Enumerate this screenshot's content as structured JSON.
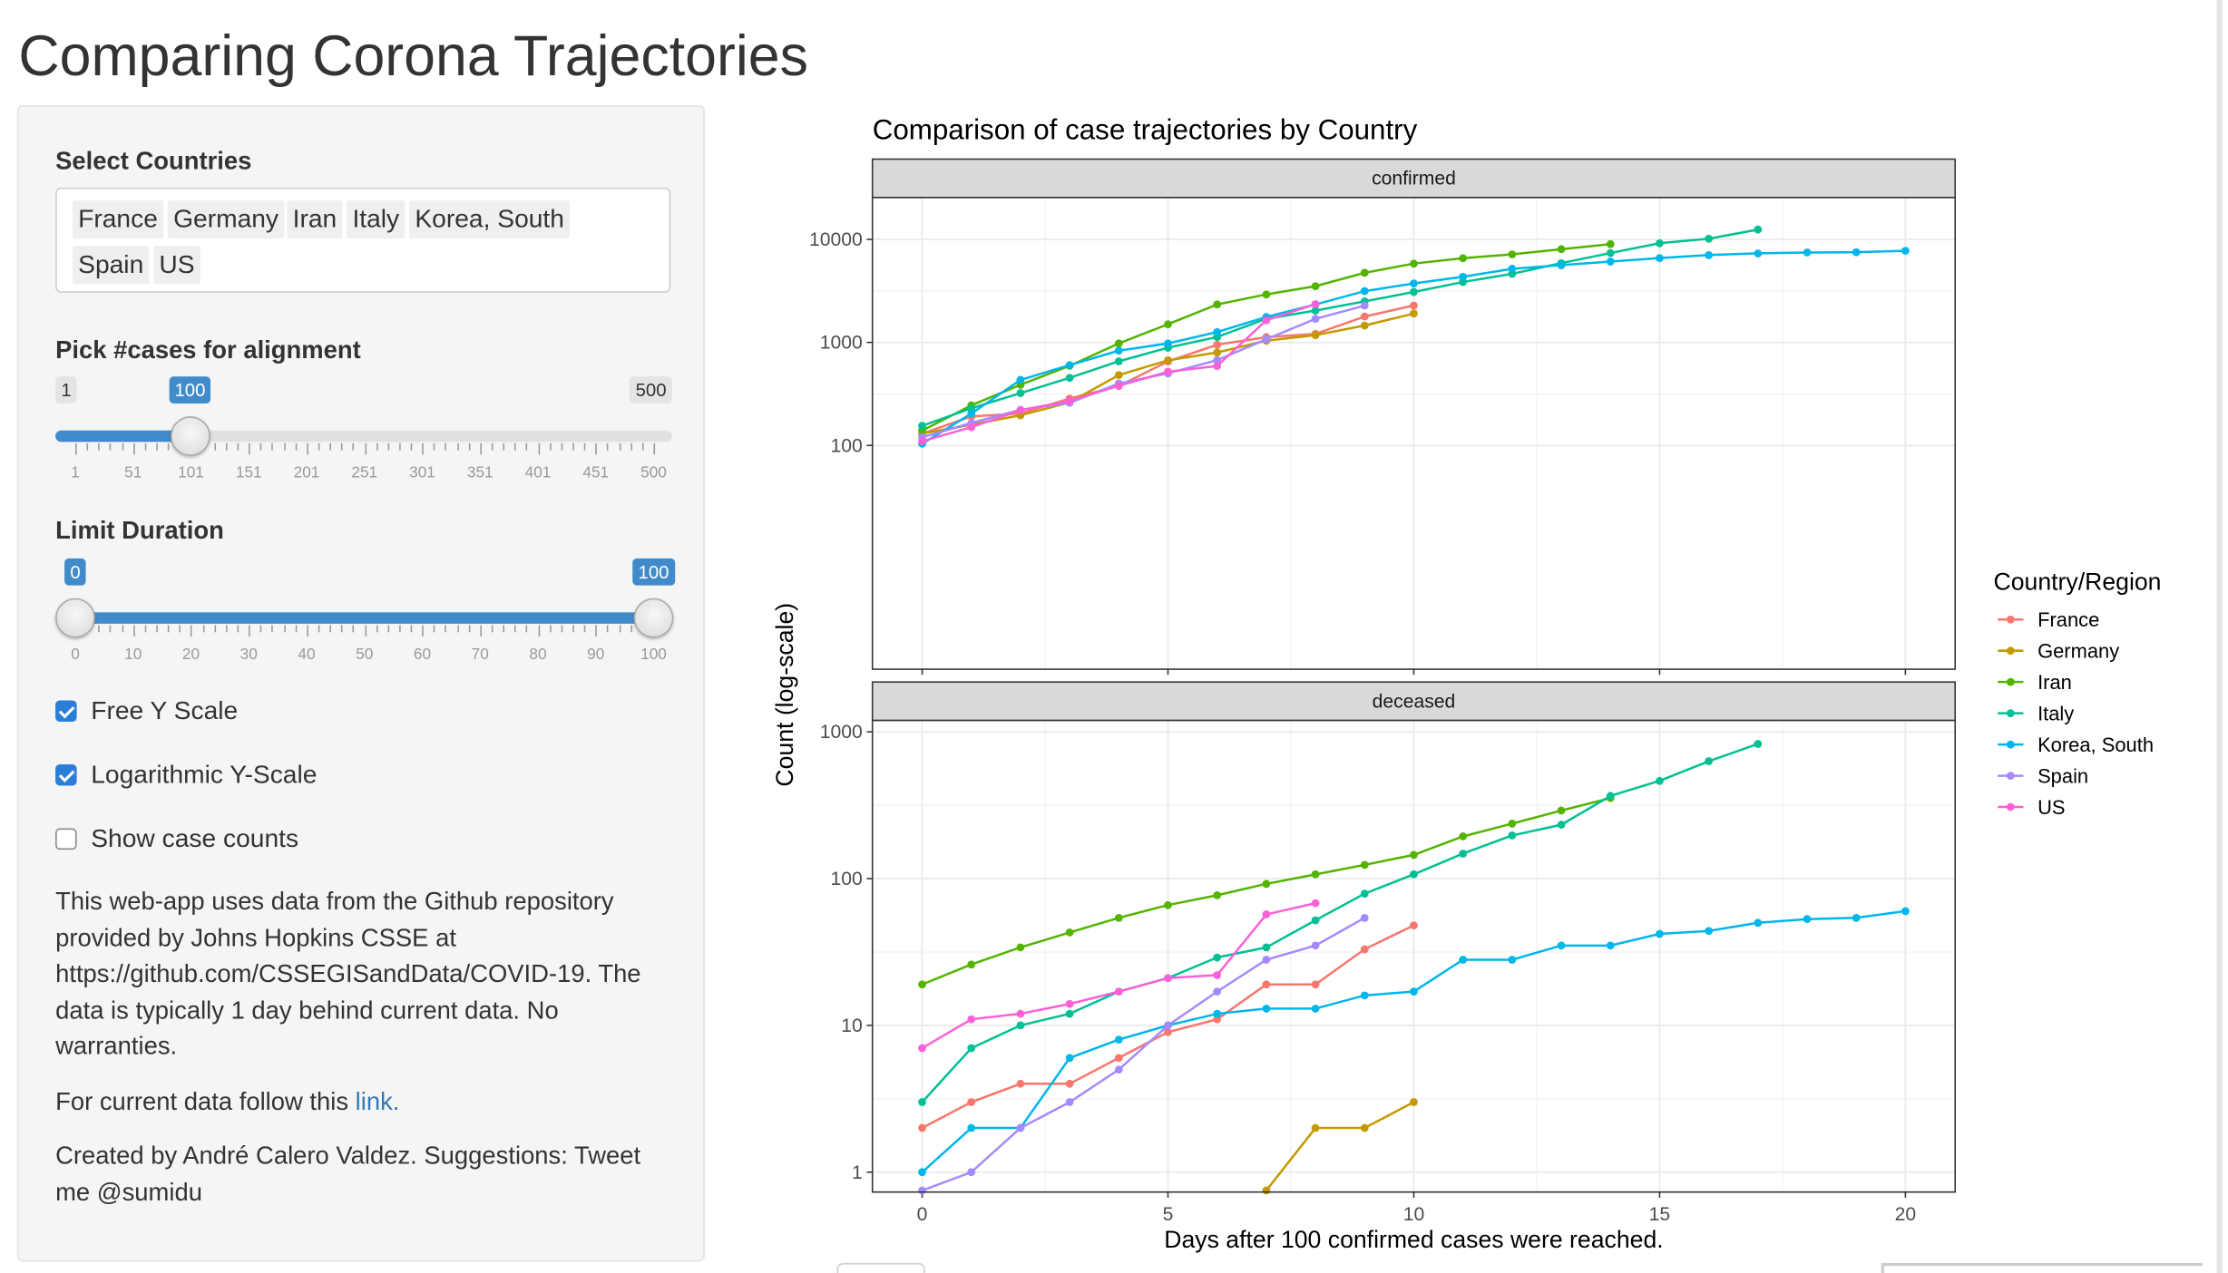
{
  "app": {
    "title": "Comparing Corona Trajectories"
  },
  "sidebar": {
    "countries": {
      "label": "Select Countries",
      "selected": [
        "France",
        "Germany",
        "Iran",
        "Italy",
        "Korea, South",
        "Spain",
        "US"
      ]
    },
    "alignment": {
      "label": "Pick #cases for alignment",
      "min": 1,
      "max": 500,
      "value": 100,
      "min_label": "1",
      "max_label": "500",
      "value_label": "100",
      "ticks": [
        "1",
        "51",
        "101",
        "151",
        "201",
        "251",
        "301",
        "351",
        "401",
        "451",
        "500"
      ]
    },
    "duration": {
      "label": "Limit Duration",
      "min": 0,
      "max": 100,
      "from": 0,
      "to": 100,
      "from_label": "0",
      "to_label": "100",
      "ticks": [
        "0",
        "10",
        "20",
        "30",
        "40",
        "50",
        "60",
        "70",
        "80",
        "90",
        "100"
      ]
    },
    "options": [
      {
        "label": "Free Y Scale",
        "checked": true
      },
      {
        "label": "Logarithmic Y-Scale",
        "checked": true
      },
      {
        "label": "Show case counts",
        "checked": false
      }
    ],
    "info_text": "This web-app uses data from the Github repository provided by Johns Hopkins CSSE at https://github.com/CSSEGISandData/COVID-19. The data is typically 1 day behind current data. No warranties.",
    "link_prefix": "For current data follow this ",
    "link_text": "link.",
    "credit_text": "Created by André Calero Valdez. Suggestions: Tweet me @sumidu"
  },
  "chart_data": {
    "type": "line",
    "title": "Comparison of case trajectories by Country",
    "xlabel": "Days after 100 confirmed cases were reached.",
    "ylabel": "Count (log-scale)",
    "legend_title": "Country/Region",
    "legend_position": "right",
    "xlim": [
      0,
      20
    ],
    "x_ticks": [
      0,
      5,
      10,
      15,
      20
    ],
    "grid": true,
    "scale": "log",
    "colors": {
      "France": "#F8766D",
      "Germany": "#C49A00",
      "Iran": "#53B400",
      "Italy": "#00C094",
      "Korea, South": "#00B6EB",
      "Spain": "#A58AFF",
      "US": "#FB61D7"
    },
    "legend": [
      "France",
      "Germany",
      "Iran",
      "Italy",
      "Korea, South",
      "Spain",
      "US"
    ],
    "panels": [
      {
        "strip": "confirmed",
        "ylim": [
          100,
          13000
        ],
        "y_ticks": [
          {
            "value": 100,
            "label": "100"
          },
          {
            "value": 1000,
            "label": "1000"
          },
          {
            "value": 10000,
            "label": "10000"
          }
        ],
        "series": [
          {
            "name": "France",
            "x": [
              0,
              1,
              2,
              3,
              4,
              5,
              6,
              7,
              8,
              9,
              10
            ],
            "y": [
              130,
              191,
              204,
              285,
              377,
              653,
              949,
              1126,
              1209,
              1784,
              2281
            ]
          },
          {
            "name": "Germany",
            "x": [
              0,
              1,
              2,
              3,
              4,
              5,
              6,
              7,
              8,
              9,
              10
            ],
            "y": [
              130,
              159,
              196,
              262,
              482,
              670,
              799,
              1040,
              1176,
              1457,
              1908
            ]
          },
          {
            "name": "Iran",
            "x": [
              0,
              1,
              2,
              3,
              4,
              5,
              6,
              7,
              8,
              9,
              10,
              11,
              12,
              13,
              14
            ],
            "y": [
              139,
              245,
              388,
              593,
              978,
              1501,
              2336,
              2922,
              3513,
              4747,
              5823,
              6566,
              7161,
              8042,
              9000
            ]
          },
          {
            "name": "Italy",
            "x": [
              0,
              1,
              2,
              3,
              4,
              5,
              6,
              7,
              8,
              9,
              10,
              11,
              12,
              13,
              14,
              15,
              16,
              17
            ],
            "y": [
              155,
              229,
              322,
              453,
              655,
              888,
              1128,
              1694,
              2036,
              2502,
              3089,
              3858,
              4636,
              5883,
              7375,
              9172,
              10149,
              12462
            ]
          },
          {
            "name": "Korea, South",
            "x": [
              0,
              1,
              2,
              3,
              4,
              5,
              6,
              7,
              8,
              9,
              10,
              11,
              12,
              13,
              14,
              15,
              16,
              17,
              18,
              19,
              20
            ],
            "y": [
              104,
              204,
              433,
              602,
              833,
              977,
              1261,
              1766,
              2337,
              3150,
              3736,
              4335,
              5186,
              5621,
              6088,
              6593,
              7041,
              7314,
              7478,
              7513,
              7755
            ]
          },
          {
            "name": "Spain",
            "x": [
              0,
              1,
              2,
              3,
              4,
              5,
              6,
              7,
              8,
              9
            ],
            "y": [
              120,
              165,
              222,
              259,
              400,
              500,
              673,
              1073,
              1695,
              2277
            ]
          },
          {
            "name": "US",
            "x": [
              0,
              1,
              2,
              3,
              4,
              5,
              6,
              7,
              8
            ],
            "y": [
              110,
              150,
              220,
              270,
              380,
              520,
              590,
              1640,
              2350
            ]
          }
        ]
      },
      {
        "strip": "deceased",
        "ylim": [
          0.75,
          1000
        ],
        "y_ticks": [
          {
            "value": 1,
            "label": "1"
          },
          {
            "value": 10,
            "label": "10"
          },
          {
            "value": 100,
            "label": "100"
          },
          {
            "value": 1000,
            "label": "1000"
          }
        ],
        "series": [
          {
            "name": "France",
            "x": [
              0,
              1,
              2,
              3,
              4,
              5,
              6,
              7,
              8,
              9,
              10
            ],
            "y": [
              2,
              3,
              4,
              4,
              6,
              9,
              11,
              19,
              19,
              33,
              48
            ]
          },
          {
            "name": "Germany",
            "x": [
              7,
              8,
              9,
              10
            ],
            "y": [
              0.75,
              2,
              2,
              3
            ]
          },
          {
            "name": "Iran",
            "x": [
              0,
              1,
              2,
              3,
              4,
              5,
              6,
              7,
              8,
              9,
              10,
              11,
              12,
              13,
              14
            ],
            "y": [
              19,
              26,
              34,
              43,
              54,
              66,
              77,
              92,
              107,
              124,
              145,
              194,
              237,
              291,
              354
            ]
          },
          {
            "name": "Italy",
            "x": [
              0,
              1,
              2,
              3,
              4,
              5,
              6,
              7,
              8,
              9,
              10,
              11,
              12,
              13,
              14,
              15,
              16,
              17
            ],
            "y": [
              3,
              7,
              10,
              12,
              17,
              21,
              29,
              34,
              52,
              79,
              107,
              148,
              197,
              233,
              366,
              463,
              631,
              827
            ]
          },
          {
            "name": "Korea, South",
            "x": [
              0,
              1,
              2,
              3,
              4,
              5,
              6,
              7,
              8,
              9,
              10,
              11,
              12,
              13,
              14,
              15,
              16,
              17,
              18,
              19,
              20
            ],
            "y": [
              1,
              2,
              2,
              6,
              8,
              10,
              12,
              13,
              13,
              16,
              17,
              28,
              28,
              35,
              35,
              42,
              44,
              50,
              53,
              54,
              60
            ]
          },
          {
            "name": "Spain",
            "x": [
              0,
              1,
              2,
              3,
              4,
              5,
              6,
              7,
              8,
              9
            ],
            "y": [
              0.75,
              1,
              2,
              3,
              5,
              10,
              17,
              28,
              35,
              54
            ]
          },
          {
            "name": "US",
            "x": [
              0,
              1,
              2,
              3,
              4,
              5,
              6,
              7,
              8
            ],
            "y": [
              7,
              11,
              12,
              14,
              17,
              21,
              22,
              57,
              68
            ]
          }
        ]
      }
    ]
  }
}
